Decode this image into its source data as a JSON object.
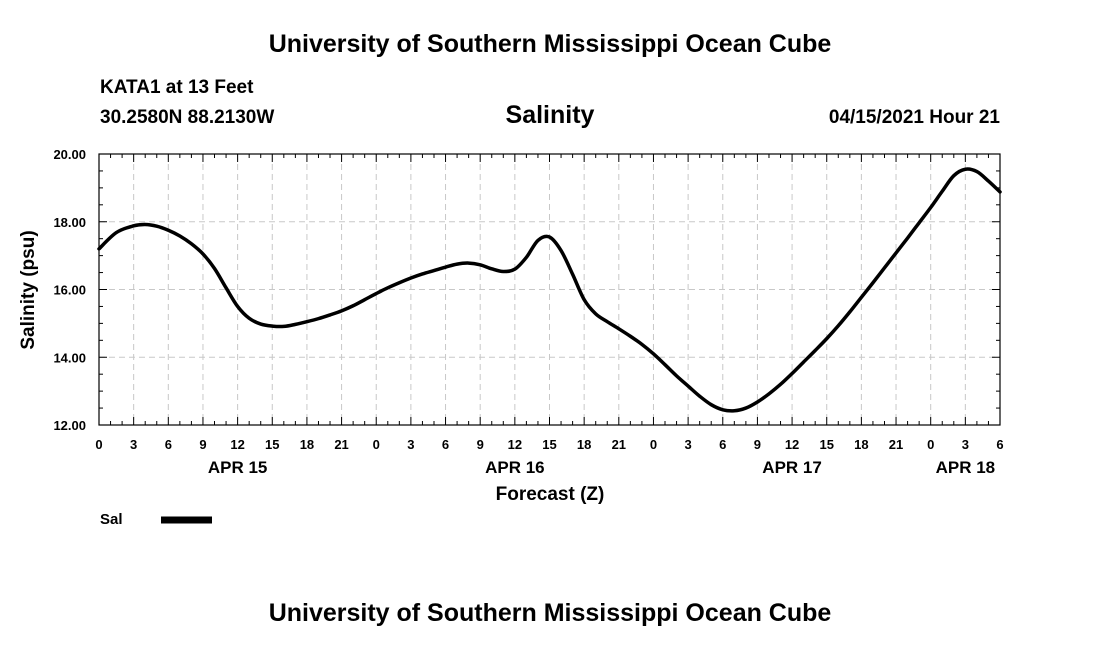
{
  "header": {
    "title": "University of Southern Mississippi Ocean Cube",
    "station": "KATA1 at 13 Feet",
    "coords": "30.2580N  88.2130W",
    "variable": "Salinity",
    "datetime": "04/15/2021 Hour 21"
  },
  "footer": {
    "title": "University of Southern Mississippi Ocean Cube"
  },
  "chart_data": {
    "type": "line",
    "title": "Salinity",
    "xlabel": "Forecast (Z)",
    "ylabel": "Salinity (psu)",
    "ylim": [
      12,
      20
    ],
    "xlim": [
      0,
      78
    ],
    "y_ticks": [
      "12.00",
      "14.00",
      "16.00",
      "18.00",
      "20.00"
    ],
    "x_tick_labels": [
      "0",
      "3",
      "6",
      "9",
      "12",
      "15",
      "18",
      "21",
      "0",
      "3",
      "6",
      "9",
      "12",
      "15",
      "18",
      "21",
      "0",
      "3",
      "6",
      "9",
      "12",
      "15",
      "18",
      "21",
      "0",
      "3",
      "6"
    ],
    "date_labels": [
      {
        "label": "APR 15",
        "hour": 12
      },
      {
        "label": "APR 16",
        "hour": 36
      },
      {
        "label": "APR 17",
        "hour": 60
      },
      {
        "label": "APR 18",
        "hour": 75
      }
    ],
    "grid": true,
    "line_color": "#000000",
    "series": [
      {
        "name": "Sal",
        "x": [
          0,
          1.5,
          3,
          4,
          5,
          6,
          7,
          8,
          9,
          10,
          11,
          12,
          13,
          14,
          15,
          16,
          17,
          18,
          19,
          20,
          21,
          22,
          23,
          24,
          25,
          26,
          27,
          28,
          29,
          30,
          31,
          32,
          33,
          34,
          35,
          36,
          37,
          38,
          39,
          40,
          41,
          42,
          43,
          44,
          45,
          46,
          47,
          48,
          49,
          50,
          51,
          52,
          53,
          54,
          55,
          56,
          57,
          58,
          59,
          60,
          61,
          62,
          63,
          64,
          65,
          66,
          67,
          68,
          69,
          70,
          71,
          72,
          73,
          74,
          75,
          76,
          77,
          78
        ],
        "values": [
          17.2,
          17.68,
          17.88,
          17.92,
          17.87,
          17.75,
          17.58,
          17.35,
          17.05,
          16.62,
          16.05,
          15.5,
          15.15,
          14.98,
          14.92,
          14.91,
          14.97,
          15.05,
          15.14,
          15.25,
          15.37,
          15.52,
          15.7,
          15.88,
          16.05,
          16.2,
          16.34,
          16.46,
          16.56,
          16.66,
          16.75,
          16.78,
          16.73,
          16.61,
          16.53,
          16.6,
          16.95,
          17.45,
          17.55,
          17.15,
          16.45,
          15.7,
          15.28,
          15.05,
          14.84,
          14.62,
          14.38,
          14.1,
          13.78,
          13.45,
          13.15,
          12.85,
          12.6,
          12.45,
          12.42,
          12.5,
          12.68,
          12.92,
          13.2,
          13.52,
          13.86,
          14.2,
          14.55,
          14.93,
          15.34,
          15.77,
          16.2,
          16.64,
          17.08,
          17.52,
          17.97,
          18.42,
          18.9,
          19.36,
          19.55,
          19.48,
          19.2,
          18.88
        ]
      }
    ],
    "legend": {
      "label": "Sal",
      "placement": "bottom-left"
    }
  }
}
